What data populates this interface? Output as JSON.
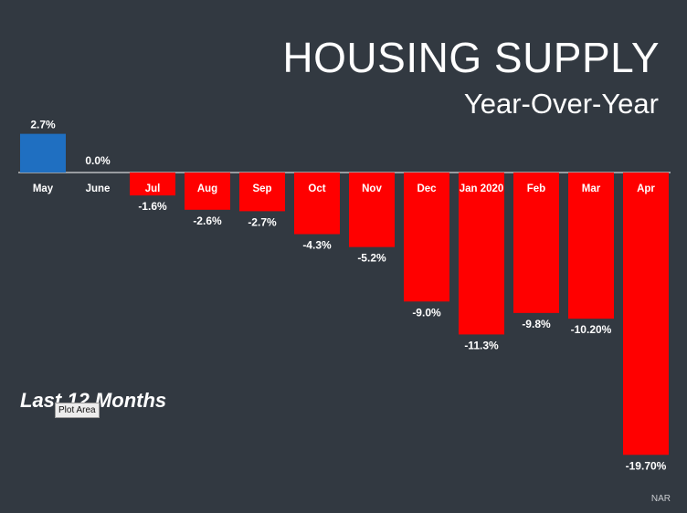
{
  "header": {
    "title": "HOUSING SUPPLY",
    "subtitle": "Year-Over-Year"
  },
  "annotation": {
    "period_label": "Last 12 Months",
    "tooltip": "Plot Area"
  },
  "source": "NAR",
  "colors": {
    "background": "#323941",
    "positive_bar": "#1f6fc1",
    "negative_bar": "#ff0000",
    "axis_line": "#ffffff",
    "text": "#ffffff"
  },
  "chart_data": {
    "type": "bar",
    "title": "HOUSING SUPPLY",
    "subtitle": "Year-Over-Year",
    "categories": [
      "May",
      "June",
      "Jul",
      "Aug",
      "Sep",
      "Oct",
      "Nov",
      "Dec",
      "Jan 2020",
      "Feb",
      "Mar",
      "Apr"
    ],
    "values": [
      2.7,
      0.0,
      -1.6,
      -2.6,
      -2.7,
      -4.3,
      -5.2,
      -9.0,
      -11.3,
      -9.8,
      -10.2,
      -19.7
    ],
    "value_labels": [
      "2.7%",
      "0.0%",
      "-1.6%",
      "-2.6%",
      "-2.7%",
      "-4.3%",
      "-5.2%",
      "-9.0%",
      "-11.3%",
      "-9.8%",
      "-10.20%",
      "-19.70%"
    ],
    "unit": "%",
    "xlabel": "",
    "ylabel": "",
    "grid": false,
    "legend": "none"
  }
}
